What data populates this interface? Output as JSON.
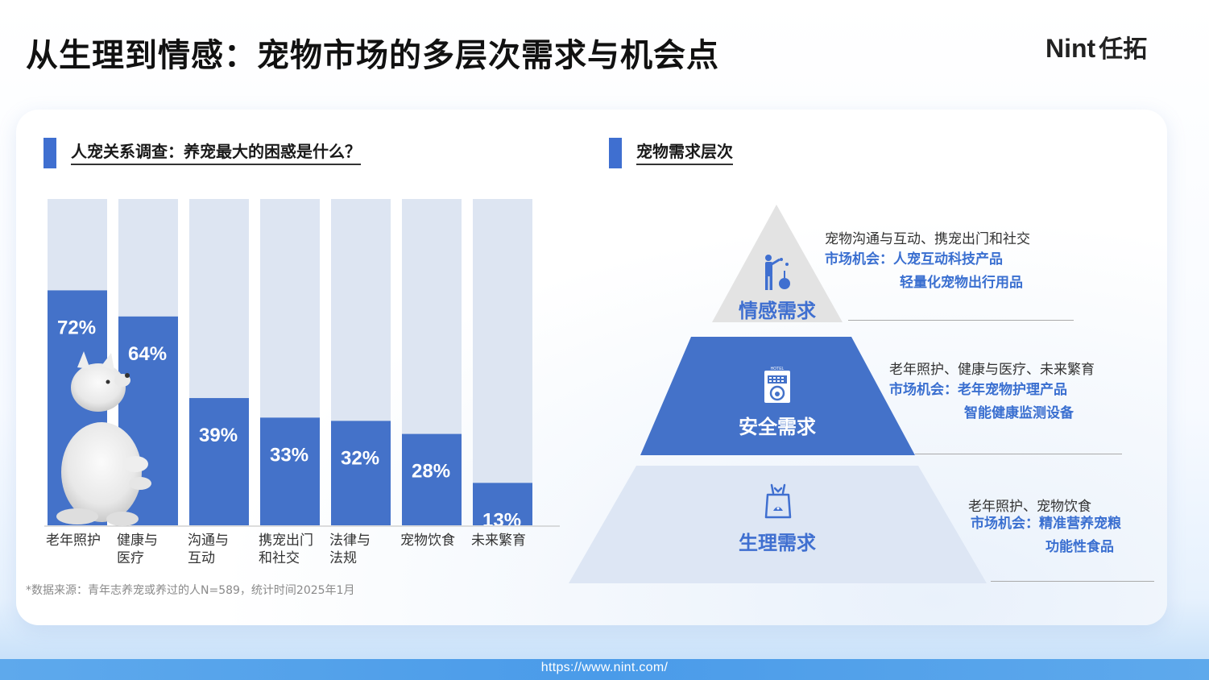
{
  "title": "从生理到情感：宠物市场的多层次需求与机会点",
  "logo": {
    "brand": "Nint",
    "cn": "任拓"
  },
  "footer": {
    "url": "https://www.nint.com/"
  },
  "colors": {
    "accent": "#3f6fd0",
    "bar_fill": "#4472c9",
    "bar_track": "#dde5f2"
  },
  "left_panel": {
    "heading": "人宠关系调查：养宠最大的困惑是什么？",
    "source_note": "*数据来源：青年志养宠或养过的人N=589，统计时间2025年1月"
  },
  "chart_data": {
    "type": "bar",
    "categories": [
      [
        "老年照护"
      ],
      [
        "健康与",
        "医疗"
      ],
      [
        "沟通与",
        "互动"
      ],
      [
        "携宠出门",
        "和社交"
      ],
      [
        "法律与",
        "法规"
      ],
      [
        "宠物饮食"
      ],
      [
        "未来繁育"
      ]
    ],
    "values": [
      72,
      64,
      39,
      33,
      32,
      28,
      13
    ],
    "value_labels": [
      "72%",
      "64%",
      "39%",
      "33%",
      "32%",
      "28%",
      "13%"
    ],
    "ylim": [
      0,
      100
    ],
    "grid": false,
    "legend": "none"
  },
  "right_panel": {
    "heading": "宠物需求层次",
    "levels": [
      {
        "name": "情感需求",
        "icon": "person-pet-interaction-icon",
        "desc": "宠物沟通与互动、携宠出门和社交",
        "opp_prefix": "市场机会：",
        "opp_lines": [
          "人宠互动科技产品",
          "轻量化宠物出行用品"
        ]
      },
      {
        "name": "安全需求",
        "icon": "pet-hotel-icon",
        "icon_text": "HOTEL",
        "desc": "老年照护、健康与医疗、未来繁育",
        "opp_prefix": "市场机会：",
        "opp_lines": [
          "老年宠物护理产品",
          "智能健康监测设备"
        ]
      },
      {
        "name": "生理需求",
        "icon": "pet-food-bag-icon",
        "desc": "老年照护、宠物饮食",
        "opp_prefix": "市场机会：",
        "opp_lines": [
          "精准营养宠粮",
          "功能性食品"
        ]
      }
    ]
  }
}
